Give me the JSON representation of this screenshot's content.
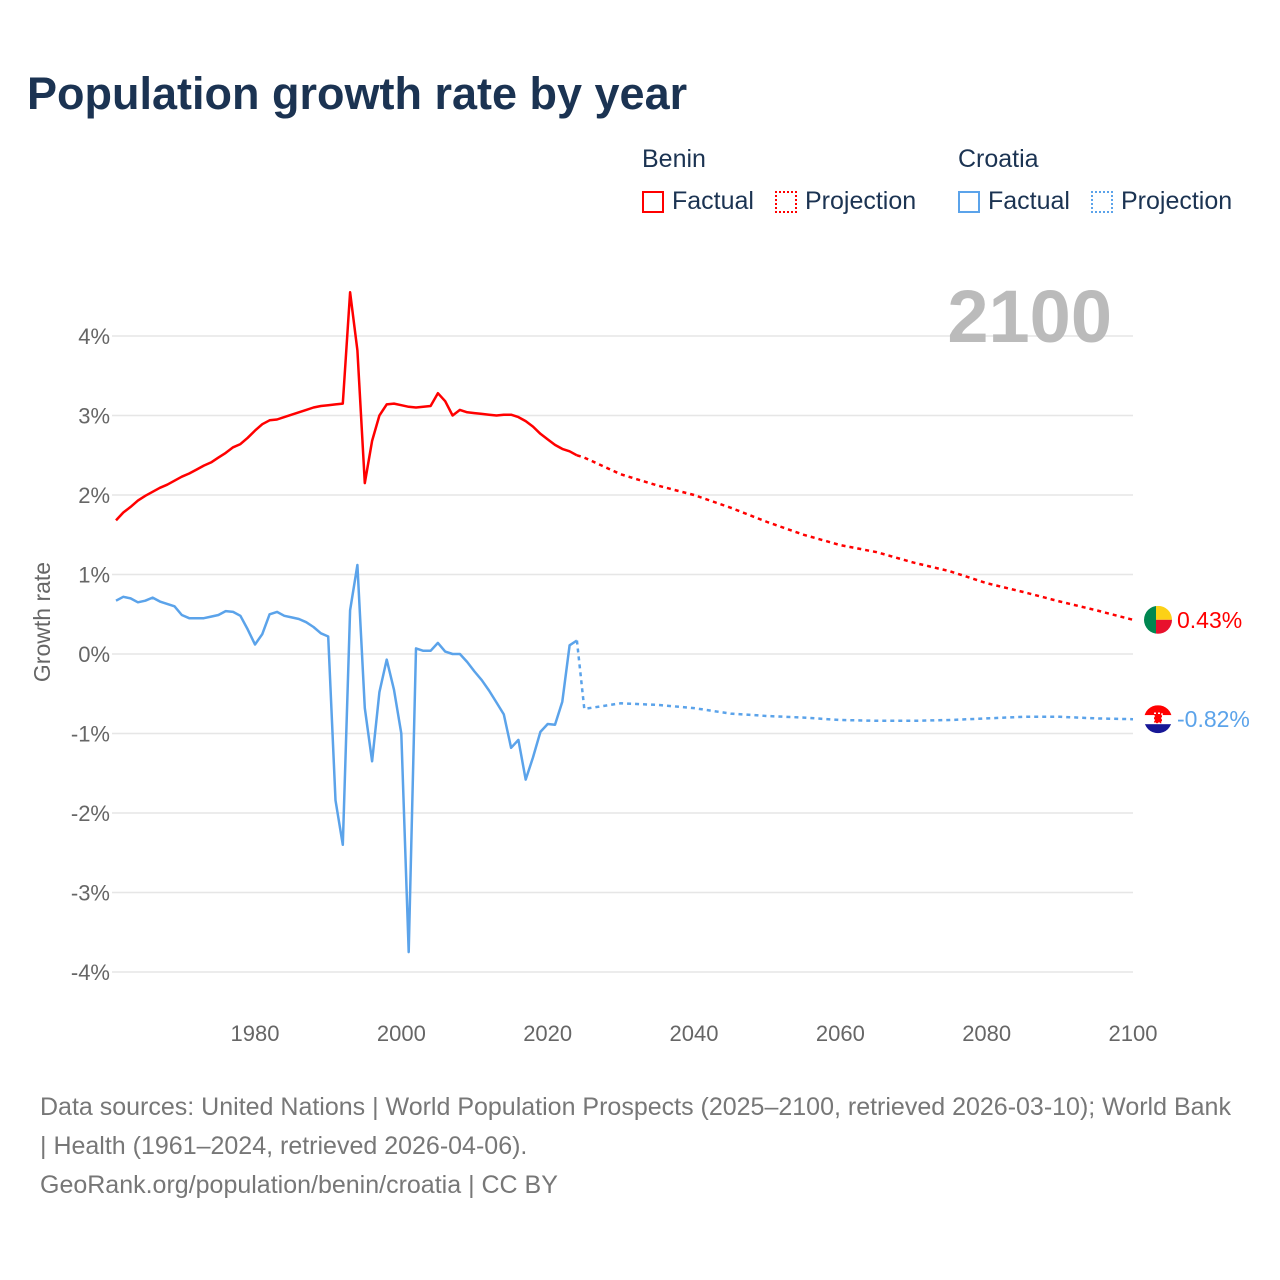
{
  "title": "Population growth rate by year",
  "legend": {
    "groups": [
      {
        "name": "Benin",
        "factual": "Factual",
        "projection": "Projection",
        "color": "#ff0000"
      },
      {
        "name": "Croatia",
        "factual": "Factual",
        "projection": "Projection",
        "color": "#5ba3ea"
      }
    ]
  },
  "footer": {
    "sources": "Data sources: United Nations | World Population Prospects (2025–2100, retrieved 2026-03-10); World Bank | Health (1961–2024, retrieved 2026-04-06).",
    "credit": "GeoRank.org/population/benin/croatia | CC BY"
  },
  "chart_data": {
    "type": "line",
    "title": "Population growth rate by year",
    "xlabel": "",
    "ylabel": "Growth rate",
    "year_label": "2100",
    "xlim": [
      1961,
      2100
    ],
    "ylim": [
      -4.3,
      4.6
    ],
    "x_ticks": [
      1980,
      2000,
      2020,
      2040,
      2060,
      2080,
      2100
    ],
    "y_ticks": [
      -4,
      -3,
      -2,
      -1,
      0,
      1,
      2,
      3,
      4
    ],
    "y_tick_labels": [
      "-4%",
      "-3%",
      "-2%",
      "-1%",
      "0%",
      "1%",
      "2%",
      "3%",
      "4%"
    ],
    "grid": true,
    "series": [
      {
        "name": "Benin",
        "color": "#ff0000",
        "end_label": "0.43%",
        "factual": {
          "start_year": 1961,
          "values": [
            1.68,
            1.78,
            1.85,
            1.93,
            1.99,
            2.04,
            2.09,
            2.13,
            2.18,
            2.23,
            2.27,
            2.32,
            2.37,
            2.41,
            2.47,
            2.53,
            2.6,
            2.64,
            2.72,
            2.81,
            2.89,
            2.94,
            2.95,
            2.98,
            3.01,
            3.04,
            3.07,
            3.1,
            3.12,
            3.13,
            3.14,
            3.15,
            4.55,
            3.82,
            2.15,
            2.68,
            3.0,
            3.14,
            3.15,
            3.13,
            3.11,
            3.1,
            3.11,
            3.12,
            3.28,
            3.18,
            3.0,
            3.07,
            3.04,
            3.03,
            3.02,
            3.01,
            3.0,
            3.01,
            3.01,
            2.98,
            2.93,
            2.86,
            2.77,
            2.7,
            2.63,
            2.58,
            2.55,
            2.5
          ]
        },
        "projection": {
          "x": [
            2024,
            2025,
            2030,
            2035,
            2040,
            2045,
            2050,
            2055,
            2060,
            2065,
            2070,
            2075,
            2080,
            2085,
            2090,
            2095,
            2100
          ],
          "values": [
            2.5,
            2.47,
            2.26,
            2.12,
            2.0,
            1.84,
            1.66,
            1.5,
            1.37,
            1.28,
            1.15,
            1.04,
            0.89,
            0.78,
            0.66,
            0.55,
            0.43
          ]
        }
      },
      {
        "name": "Croatia",
        "color": "#5ba3ea",
        "end_label": "-0.82%",
        "factual": {
          "start_year": 1961,
          "values": [
            0.67,
            0.72,
            0.7,
            0.65,
            0.67,
            0.71,
            0.66,
            0.63,
            0.6,
            0.49,
            0.45,
            0.45,
            0.45,
            0.47,
            0.49,
            0.54,
            0.53,
            0.48,
            0.31,
            0.12,
            0.25,
            0.5,
            0.53,
            0.48,
            0.46,
            0.44,
            0.4,
            0.34,
            0.26,
            0.22,
            -1.84,
            -2.4,
            0.55,
            1.12,
            -0.68,
            -1.35,
            -0.48,
            -0.07,
            -0.45,
            -1.0,
            -3.75,
            0.07,
            0.04,
            0.04,
            0.14,
            0.03,
            0.0,
            0.0,
            -0.1,
            -0.22,
            -0.33,
            -0.46,
            -0.61,
            -0.76,
            -1.18,
            -1.08,
            -1.58,
            -1.3,
            -0.98,
            -0.88,
            -0.89,
            -0.6,
            0.11,
            0.17
          ]
        },
        "projection": {
          "x": [
            2024,
            2025,
            2030,
            2035,
            2040,
            2045,
            2050,
            2055,
            2060,
            2065,
            2070,
            2075,
            2080,
            2085,
            2090,
            2095,
            2100
          ],
          "values": [
            0.17,
            -0.69,
            -0.62,
            -0.64,
            -0.68,
            -0.75,
            -0.78,
            -0.8,
            -0.83,
            -0.84,
            -0.84,
            -0.83,
            -0.81,
            -0.79,
            -0.79,
            -0.81,
            -0.82
          ]
        }
      }
    ]
  }
}
